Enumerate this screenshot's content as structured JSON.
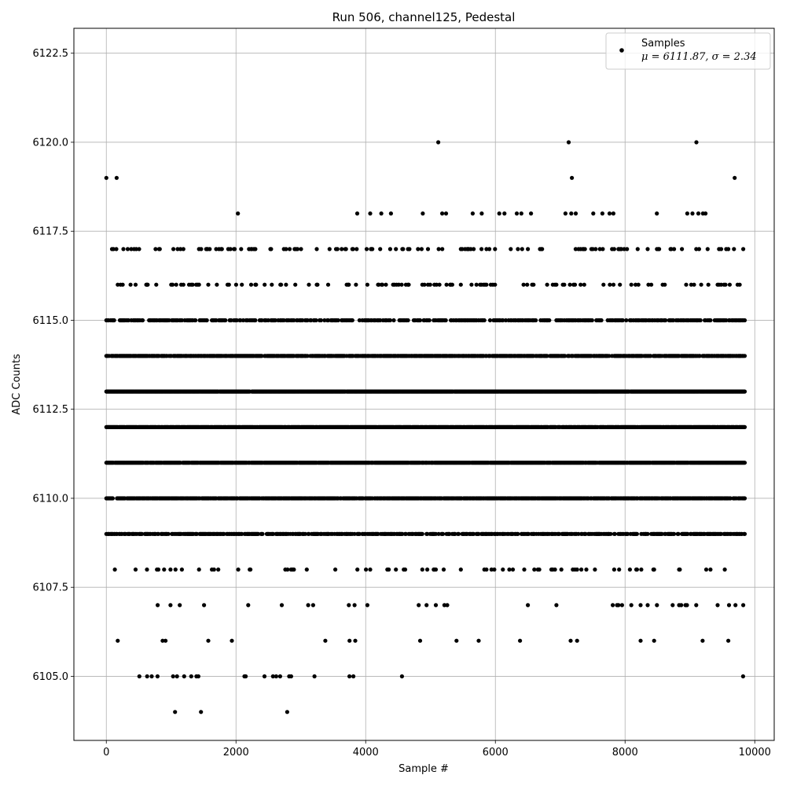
{
  "chart_data": {
    "type": "scatter",
    "title": "Run 506, channel125, Pedestal",
    "xlabel": "Sample #",
    "ylabel": "ADC Counts",
    "xlim": [
      -500,
      10300
    ],
    "ylim": [
      6103.2,
      6123.2
    ],
    "x_ticks": [
      0,
      2000,
      4000,
      6000,
      8000,
      10000
    ],
    "y_ticks": [
      6105.0,
      6107.5,
      6110.0,
      6112.5,
      6115.0,
      6117.5,
      6120.0,
      6122.5
    ],
    "x_tick_labels": [
      "0",
      "2000",
      "4000",
      "6000",
      "8000",
      "10000"
    ],
    "y_tick_labels": [
      "6105.0",
      "6107.5",
      "6110.0",
      "6112.5",
      "6115.0",
      "6117.5",
      "6120.0",
      "6122.5"
    ],
    "grid": true,
    "legend_position": "top-right",
    "marker_color": "#000000",
    "series": [
      {
        "name": "Samples",
        "stats_label": "μ = 6111.87, σ = 2.34",
        "mean": 6111.87,
        "sigma": 2.34,
        "n_samples": 9850,
        "level_distribution": [
          {
            "adc": 6104,
            "coverage": 0.002
          },
          {
            "adc": 6105,
            "coverage": 0.008
          },
          {
            "adc": 6106,
            "coverage": 0.02
          },
          {
            "adc": 6107,
            "coverage": 0.035
          },
          {
            "adc": 6108,
            "coverage": 0.08
          },
          {
            "adc": 6109,
            "coverage": 0.6
          },
          {
            "adc": 6110,
            "coverage": 0.85
          },
          {
            "adc": 6111,
            "coverage": 0.95
          },
          {
            "adc": 6112,
            "coverage": 0.9
          },
          {
            "adc": 6113,
            "coverage": 0.98
          },
          {
            "adc": 6114,
            "coverage": 0.8
          },
          {
            "adc": 6115,
            "coverage": 0.5
          },
          {
            "adc": 6116,
            "coverage": 0.12
          },
          {
            "adc": 6117,
            "coverage": 0.15
          },
          {
            "adc": 6118,
            "coverage": 0.008
          },
          {
            "adc": 6119,
            "coverage": 0.0005
          },
          {
            "adc": 6120,
            "coverage": 0.0003
          }
        ],
        "points": [
          [
            0,
            6119
          ],
          [
            160,
            6119
          ],
          [
            5120,
            6120
          ],
          [
            7130,
            6120
          ],
          [
            7180,
            6119
          ],
          [
            9100,
            6120
          ],
          [
            9690,
            6119
          ],
          [
            2030,
            6118
          ],
          [
            3870,
            6118
          ],
          [
            4070,
            6118
          ],
          [
            4240,
            6118
          ],
          [
            4390,
            6118
          ],
          [
            4880,
            6118
          ],
          [
            5180,
            6118
          ],
          [
            5240,
            6118
          ],
          [
            5650,
            6118
          ],
          [
            5790,
            6118
          ],
          [
            6060,
            6118
          ],
          [
            6140,
            6118
          ],
          [
            6330,
            6118
          ],
          [
            6400,
            6118
          ],
          [
            6550,
            6118
          ],
          [
            7080,
            6118
          ],
          [
            7170,
            6118
          ],
          [
            7240,
            6118
          ],
          [
            7510,
            6118
          ],
          [
            7650,
            6118
          ],
          [
            7760,
            6118
          ],
          [
            7820,
            6118
          ],
          [
            8490,
            6118
          ],
          [
            8960,
            6118
          ],
          [
            9040,
            6118
          ],
          [
            9130,
            6118
          ],
          [
            9200,
            6118
          ],
          [
            9240,
            6118
          ],
          [
            1060,
            6104
          ],
          [
            1460,
            6104
          ],
          [
            2790,
            6104
          ],
          [
            510,
            6105
          ],
          [
            630,
            6105
          ],
          [
            700,
            6105
          ],
          [
            790,
            6105
          ],
          [
            1030,
            6105
          ],
          [
            1090,
            6105
          ],
          [
            1200,
            6105
          ],
          [
            1310,
            6105
          ],
          [
            1390,
            6105
          ],
          [
            1420,
            6105
          ],
          [
            2130,
            6105
          ],
          [
            2150,
            6105
          ],
          [
            2440,
            6105
          ],
          [
            2570,
            6105
          ],
          [
            2620,
            6105
          ],
          [
            2680,
            6105
          ],
          [
            2820,
            6105
          ],
          [
            2850,
            6105
          ],
          [
            3210,
            6105
          ],
          [
            3750,
            6105
          ],
          [
            3810,
            6105
          ],
          [
            4560,
            6105
          ],
          [
            9820,
            6105
          ]
        ]
      }
    ]
  }
}
